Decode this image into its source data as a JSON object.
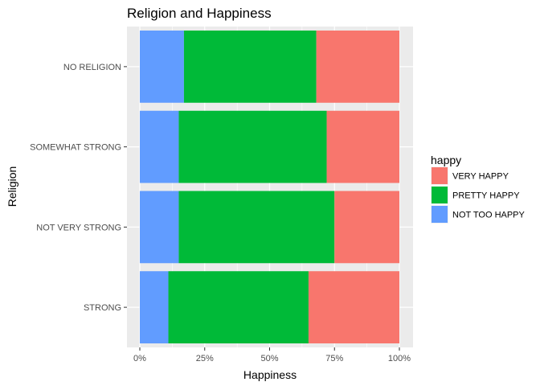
{
  "chart_data": {
    "type": "bar",
    "orientation": "horizontal",
    "stacked": "percent",
    "title": "Religion and Happiness",
    "xlabel": "Happiness",
    "ylabel": "Religion",
    "xlim": [
      0,
      1
    ],
    "x_ticks": [
      0,
      0.25,
      0.5,
      0.75,
      1
    ],
    "x_tick_labels": [
      "0%",
      "25%",
      "50%",
      "75%",
      "100%"
    ],
    "categories": [
      "STRONG",
      "NOT VERY STRONG",
      "SOMEWHAT STRONG",
      "NO RELIGION"
    ],
    "series": [
      {
        "name": "NOT TOO HAPPY",
        "color": "#619CFF",
        "values": [
          0.11,
          0.15,
          0.15,
          0.17
        ]
      },
      {
        "name": "PRETTY HAPPY",
        "color": "#00BA38",
        "values": [
          0.54,
          0.6,
          0.57,
          0.51
        ]
      },
      {
        "name": "VERY HAPPY",
        "color": "#F8766D",
        "values": [
          0.35,
          0.25,
          0.28,
          0.32
        ]
      }
    ],
    "legend": {
      "title": "happy",
      "position": "right",
      "order": [
        "VERY HAPPY",
        "PRETTY HAPPY",
        "NOT TOO HAPPY"
      ]
    },
    "grid": true,
    "panel_background": "#EBEBEB",
    "grid_color": "#FFFFFF"
  }
}
